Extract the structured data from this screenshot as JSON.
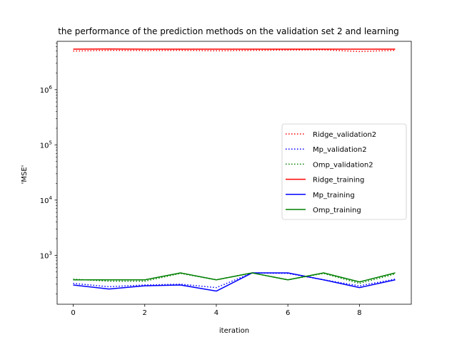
{
  "chart_data": {
    "type": "line",
    "title": "the performance of the prediction methods on the validation set 2 and learning",
    "xlabel": "iteration",
    "ylabel": "'MSE'",
    "x": [
      0,
      1,
      2,
      3,
      4,
      5,
      6,
      7,
      8,
      9
    ],
    "xlim": [
      -0.45,
      9.45
    ],
    "ylim": [
      130,
      7500000
    ],
    "yscale": "log",
    "x_ticks": [
      0,
      2,
      4,
      6,
      8
    ],
    "y_ticks": [
      {
        "value": 1000,
        "base": "10",
        "exp": "3"
      },
      {
        "value": 10000,
        "base": "10",
        "exp": "4"
      },
      {
        "value": 100000,
        "base": "10",
        "exp": "5"
      },
      {
        "value": 1000000,
        "base": "10",
        "exp": "6"
      }
    ],
    "grid": false,
    "legend_position": "center-right",
    "series": [
      {
        "name": "Ridge_validation2",
        "color": "#ff0000",
        "style": "dotted",
        "values": [
          5000000,
          5150000,
          5100000,
          5150000,
          5050000,
          5150000,
          5200000,
          5250000,
          4900000,
          5150000
        ]
      },
      {
        "name": "Mp_validation2",
        "color": "#0000ff",
        "style": "dotted",
        "values": [
          310,
          270,
          290,
          300,
          260,
          480,
          470,
          360,
          280,
          370
        ]
      },
      {
        "name": "Omp_validation2",
        "color": "#008000",
        "style": "dotted",
        "values": [
          370,
          340,
          340,
          470,
          360,
          480,
          360,
          470,
          310,
          460
        ]
      },
      {
        "name": "Ridge_training",
        "color": "#ff0000",
        "style": "solid",
        "values": [
          5400000,
          5450000,
          5400000,
          5400000,
          5400000,
          5400000,
          5400000,
          5400000,
          5400000,
          5400000
        ]
      },
      {
        "name": "Mp_training",
        "color": "#0000ff",
        "style": "solid",
        "values": [
          290,
          245,
          280,
          290,
          225,
          480,
          480,
          360,
          260,
          360
        ]
      },
      {
        "name": "Omp_training",
        "color": "#008000",
        "style": "solid",
        "values": [
          360,
          360,
          360,
          480,
          360,
          480,
          360,
          480,
          330,
          480
        ]
      }
    ]
  }
}
